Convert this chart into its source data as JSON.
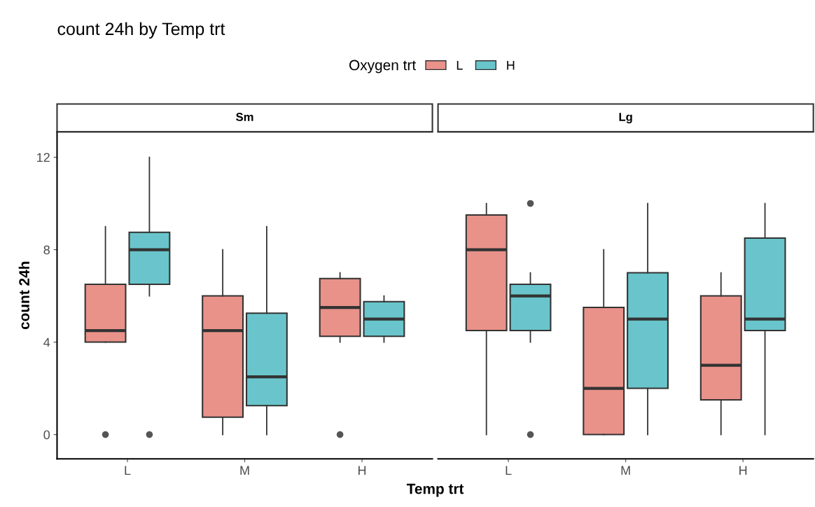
{
  "chart_data": [
    {
      "type": "box",
      "title": "count 24h by Temp trt",
      "subtitle": "Sm",
      "xlabel": "Temp trt",
      "ylabel": "count 24h",
      "legend_title": "Oxygen trt",
      "legend": "top",
      "grid": false,
      "categories": [
        "L",
        "M",
        "H"
      ],
      "ylim": [
        -1.05,
        13.1
      ],
      "yticks": [
        0,
        4,
        8,
        12
      ],
      "series": [
        {
          "name": "L",
          "color": "#e9928a",
          "boxes": [
            {
              "low": 4,
              "q1": 4,
              "median": 4.5,
              "q3": 6.5,
              "high": 9,
              "outliers": [
                0
              ]
            },
            {
              "low": 0,
              "q1": 0.75,
              "median": 4.5,
              "q3": 6,
              "high": 8
            },
            {
              "low": 4,
              "q1": 4.25,
              "median": 5.5,
              "q3": 6.75,
              "high": 7,
              "outliers": [
                0
              ]
            }
          ]
        },
        {
          "name": "H",
          "color": "#69c5cb",
          "boxes": [
            {
              "low": 6,
              "q1": 6.5,
              "median": 8,
              "q3": 8.75,
              "high": 12,
              "outliers": [
                0
              ]
            },
            {
              "low": 0,
              "q1": 1.25,
              "median": 2.5,
              "q3": 5.25,
              "high": 9
            },
            {
              "low": 4,
              "q1": 4.25,
              "median": 5,
              "q3": 5.75,
              "high": 6
            }
          ]
        }
      ]
    },
    {
      "type": "box",
      "subtitle": "Lg",
      "tick_labels": "x",
      "grid": false,
      "categories": [
        "L",
        "M",
        "H"
      ],
      "ylim": [
        -1.05,
        13.1
      ],
      "yticks": [
        0,
        4,
        8,
        12
      ],
      "series": [
        {
          "color": "#e9928a",
          "boxes": [
            {
              "low": 0,
              "q1": 4.5,
              "median": 8,
              "q3": 9.5,
              "high": 10
            },
            {
              "low": 0,
              "q1": 0,
              "median": 2,
              "q3": 5.5,
              "high": 8
            },
            {
              "low": 0,
              "q1": 1.5,
              "median": 3,
              "q3": 6,
              "high": 7
            }
          ]
        },
        {
          "color": "#69c5cb",
          "boxes": [
            {
              "low": 4,
              "q1": 4.5,
              "median": 6,
              "q3": 6.5,
              "high": 7,
              "outliers": [
                10,
                0
              ]
            },
            {
              "low": 0,
              "q1": 2,
              "median": 5,
              "q3": 7,
              "high": 10
            },
            {
              "low": 0,
              "q1": 4.5,
              "median": 5,
              "q3": 8.5,
              "high": 10
            }
          ]
        }
      ]
    }
  ]
}
